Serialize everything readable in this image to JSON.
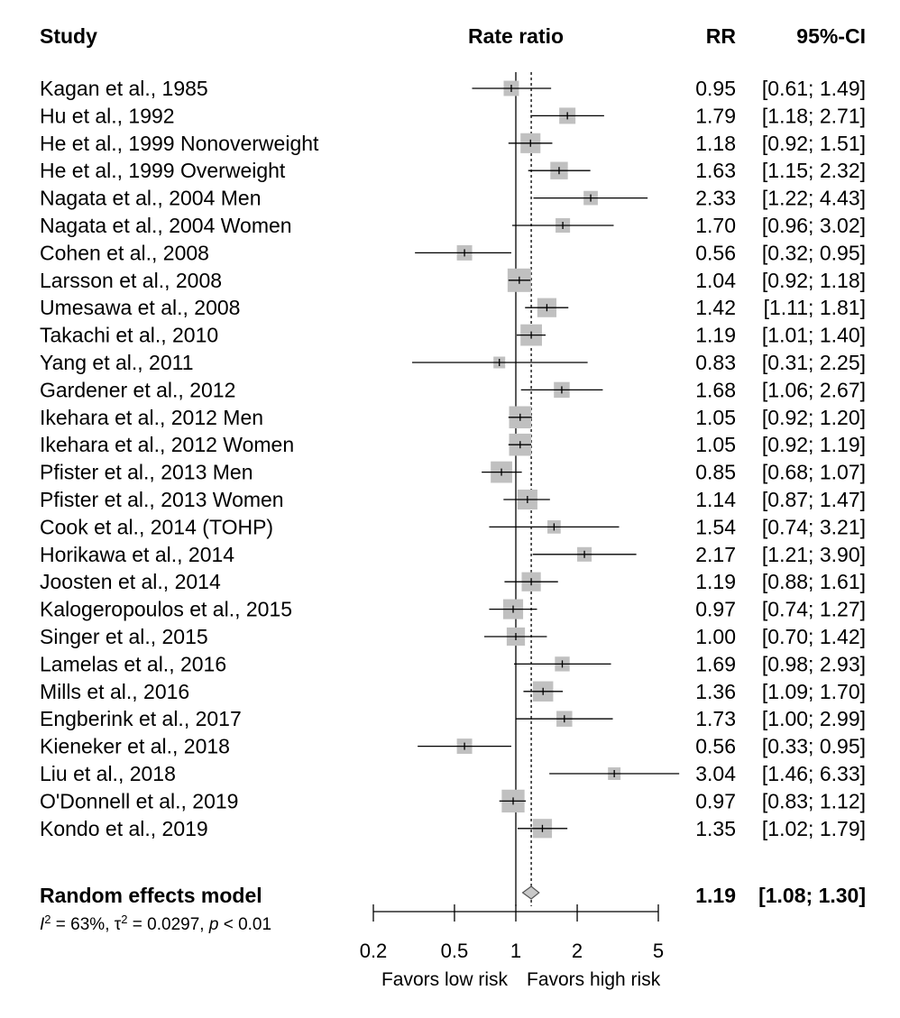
{
  "chart_data": {
    "type": "forest",
    "headers": {
      "study": "Study",
      "measure": "Rate ratio",
      "rr": "RR",
      "ci": "95%-CI"
    },
    "studies": [
      {
        "label": "Kagan et al., 1985",
        "rr": 0.95,
        "lo": 0.61,
        "hi": 1.49,
        "rr_text": "0.95",
        "ci_text": "[0.61; 1.49]",
        "weight": 1.6
      },
      {
        "label": "Hu et al., 1992",
        "rr": 1.79,
        "lo": 1.18,
        "hi": 2.71,
        "rr_text": "1.79",
        "ci_text": "[1.18; 2.71]",
        "weight": 2.0
      },
      {
        "label": "He et al., 1999 Nonoverweight",
        "rr": 1.18,
        "lo": 0.92,
        "hi": 1.51,
        "rr_text": "1.18",
        "ci_text": "[0.92; 1.51]",
        "weight": 4.0
      },
      {
        "label": "He et al., 1999 Overweight",
        "rr": 1.63,
        "lo": 1.15,
        "hi": 2.32,
        "rr_text": "1.63",
        "ci_text": "[1.15; 2.32]",
        "weight": 2.6
      },
      {
        "label": "Nagata et al., 2004 Men",
        "rr": 2.33,
        "lo": 1.22,
        "hi": 4.43,
        "rr_text": "2.33",
        "ci_text": "[1.22; 4.43]",
        "weight": 1.2
      },
      {
        "label": "Nagata et al., 2004 Women",
        "rr": 1.7,
        "lo": 0.96,
        "hi": 3.02,
        "rr_text": "1.70",
        "ci_text": "[0.96; 3.02]",
        "weight": 1.3
      },
      {
        "label": "Cohen et al., 2008",
        "rr": 0.56,
        "lo": 0.32,
        "hi": 0.95,
        "rr_text": "0.56",
        "ci_text": "[0.32; 0.95]",
        "weight": 1.6
      },
      {
        "label": "Larsson et al., 2008",
        "rr": 1.04,
        "lo": 0.92,
        "hi": 1.18,
        "rr_text": "1.04",
        "ci_text": "[0.92; 1.18]",
        "weight": 6.5
      },
      {
        "label": "Umesawa et al., 2008",
        "rr": 1.42,
        "lo": 1.11,
        "hi": 1.81,
        "rr_text": "1.42",
        "ci_text": "[1.11; 1.81]",
        "weight": 3.5
      },
      {
        "label": "Takachi et al., 2010",
        "rr": 1.19,
        "lo": 1.01,
        "hi": 1.4,
        "rr_text": "1.19",
        "ci_text": "[1.01; 1.40]",
        "weight": 5.0
      },
      {
        "label": "Yang et al., 2011",
        "rr": 0.83,
        "lo": 0.31,
        "hi": 2.25,
        "rr_text": "0.83",
        "ci_text": "[0.31; 2.25]",
        "weight": 0.5
      },
      {
        "label": "Gardener et al., 2012",
        "rr": 1.68,
        "lo": 1.06,
        "hi": 2.67,
        "rr_text": "1.68",
        "ci_text": "[1.06; 2.67]",
        "weight": 1.8
      },
      {
        "label": "Ikehara et al., 2012 Men",
        "rr": 1.05,
        "lo": 0.92,
        "hi": 1.2,
        "rr_text": "1.05",
        "ci_text": "[0.92; 1.20]",
        "weight": 5.5
      },
      {
        "label": "Ikehara et al., 2012 Women",
        "rr": 1.05,
        "lo": 0.92,
        "hi": 1.19,
        "rr_text": "1.05",
        "ci_text": "[0.92; 1.19]",
        "weight": 5.5
      },
      {
        "label": "Pfister et al., 2013 Men",
        "rr": 0.85,
        "lo": 0.68,
        "hi": 1.07,
        "rr_text": "0.85",
        "ci_text": "[0.68; 1.07]",
        "weight": 5.0
      },
      {
        "label": "Pfister et al., 2013 Women",
        "rr": 1.14,
        "lo": 0.87,
        "hi": 1.47,
        "rr_text": "1.14",
        "ci_text": "[0.87; 1.47]",
        "weight": 4.0
      },
      {
        "label": "Cook et al., 2014 (TOHP)",
        "rr": 1.54,
        "lo": 0.74,
        "hi": 3.21,
        "rr_text": "1.54",
        "ci_text": "[0.74; 3.21]",
        "weight": 0.9
      },
      {
        "label": "Horikawa et al., 2014",
        "rr": 2.17,
        "lo": 1.21,
        "hi": 3.9,
        "rr_text": "2.17",
        "ci_text": "[1.21; 3.90]",
        "weight": 1.3
      },
      {
        "label": "Joosten et al., 2014",
        "rr": 1.19,
        "lo": 0.88,
        "hi": 1.61,
        "rr_text": "1.19",
        "ci_text": "[0.88; 1.61]",
        "weight": 3.5
      },
      {
        "label": "Kalogeropoulos et al., 2015",
        "rr": 0.97,
        "lo": 0.74,
        "hi": 1.27,
        "rr_text": "0.97",
        "ci_text": "[0.74; 1.27]",
        "weight": 4.0
      },
      {
        "label": "Singer et al., 2015",
        "rr": 1.0,
        "lo": 0.7,
        "hi": 1.42,
        "rr_text": "1.00",
        "ci_text": "[0.70; 1.42]",
        "weight": 3.0
      },
      {
        "label": "Lamelas et al., 2016",
        "rr": 1.69,
        "lo": 0.98,
        "hi": 2.93,
        "rr_text": "1.69",
        "ci_text": "[0.98; 2.93]",
        "weight": 1.4
      },
      {
        "label": "Mills et al., 2016",
        "rr": 1.36,
        "lo": 1.09,
        "hi": 1.7,
        "rr_text": "1.36",
        "ci_text": "[1.09; 1.70]",
        "weight": 4.2
      },
      {
        "label": "Engberink et al., 2017",
        "rr": 1.73,
        "lo": 1.0,
        "hi": 2.99,
        "rr_text": "1.73",
        "ci_text": "[1.00; 2.99]",
        "weight": 1.8
      },
      {
        "label": "Kieneker et al., 2018",
        "rr": 0.56,
        "lo": 0.33,
        "hi": 0.95,
        "rr_text": "0.56",
        "ci_text": "[0.33; 0.95]",
        "weight": 1.6
      },
      {
        "label": "Liu et al., 2018",
        "rr": 3.04,
        "lo": 1.46,
        "hi": 6.33,
        "rr_text": "3.04",
        "ci_text": "[1.46; 6.33]",
        "weight": 0.7
      },
      {
        "label": "O'Donnell et al., 2019",
        "rr": 0.97,
        "lo": 0.83,
        "hi": 1.12,
        "rr_text": "0.97",
        "ci_text": "[0.83; 1.12]",
        "weight": 6.0
      },
      {
        "label": "Kondo et al., 2019",
        "rr": 1.35,
        "lo": 1.02,
        "hi": 1.79,
        "rr_text": "1.35",
        "ci_text": "[1.02; 1.79]",
        "weight": 3.5
      }
    ],
    "pooled": {
      "label": "Random effects model",
      "rr": 1.19,
      "lo": 1.08,
      "hi": 1.3,
      "rr_text": "1.19",
      "ci_text": "[1.08; 1.30]"
    },
    "heterogeneity": {
      "i2_symbol": "I",
      "i2_sup": "2",
      "i2_value": " = 63%, ",
      "tau_symbol": "τ",
      "tau_sup": "2",
      "tau_value": " = 0.0297, ",
      "p_symbol": "p",
      "p_value": " < 0.01"
    },
    "x_axis": {
      "scale": "log",
      "range": [
        0.2,
        5
      ],
      "ticks": [
        0.2,
        0.5,
        1,
        2,
        5
      ],
      "tick_labels": [
        "0.2",
        "0.5",
        "1",
        "2",
        "5"
      ],
      "reference_line": 1
    },
    "favors": {
      "left": "Favors low risk",
      "right": "Favors high risk"
    },
    "colors": {
      "box": "#c0c0c0",
      "diamond": "#c8c8c8",
      "line": "#000000",
      "text": "#000000"
    }
  }
}
